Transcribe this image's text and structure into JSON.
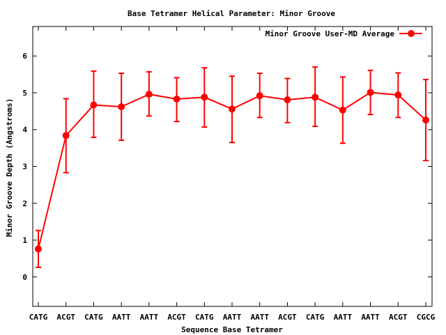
{
  "chart_data": {
    "type": "line",
    "title": "Base Tetramer Helical Parameter: Minor Groove",
    "xlabel": "Sequence Base Tetramer",
    "ylabel": "Minor Groove Depth (Angstroms)",
    "categories": [
      "CATG",
      "ACGT",
      "CATG",
      "AATT",
      "AATT",
      "ACGT",
      "CATG",
      "AATT",
      "AATT",
      "ACGT",
      "CATG",
      "AATT",
      "AATT",
      "ACGT",
      "CGCG"
    ],
    "ylim": [
      -0.8,
      6.8
    ],
    "yticks": [
      "0",
      "1",
      "2",
      "3",
      "4",
      "5",
      "6"
    ],
    "grid": false,
    "legend_position": "top-right",
    "series": [
      {
        "name": "Minor Groove User-MD Average",
        "color": "#ff0000",
        "values": [
          0.76,
          3.84,
          4.67,
          4.62,
          4.96,
          4.83,
          4.88,
          4.56,
          4.92,
          4.81,
          4.88,
          4.53,
          5.01,
          4.94,
          4.26
        ],
        "error_low": [
          0.26,
          2.83,
          3.79,
          3.71,
          4.37,
          4.22,
          4.07,
          3.65,
          4.33,
          4.19,
          4.09,
          3.63,
          4.41,
          4.33,
          3.16
        ],
        "error_high": [
          1.26,
          4.84,
          5.59,
          5.53,
          5.57,
          5.41,
          5.68,
          5.45,
          5.53,
          5.39,
          5.7,
          5.43,
          5.61,
          5.54,
          5.36
        ]
      }
    ]
  }
}
